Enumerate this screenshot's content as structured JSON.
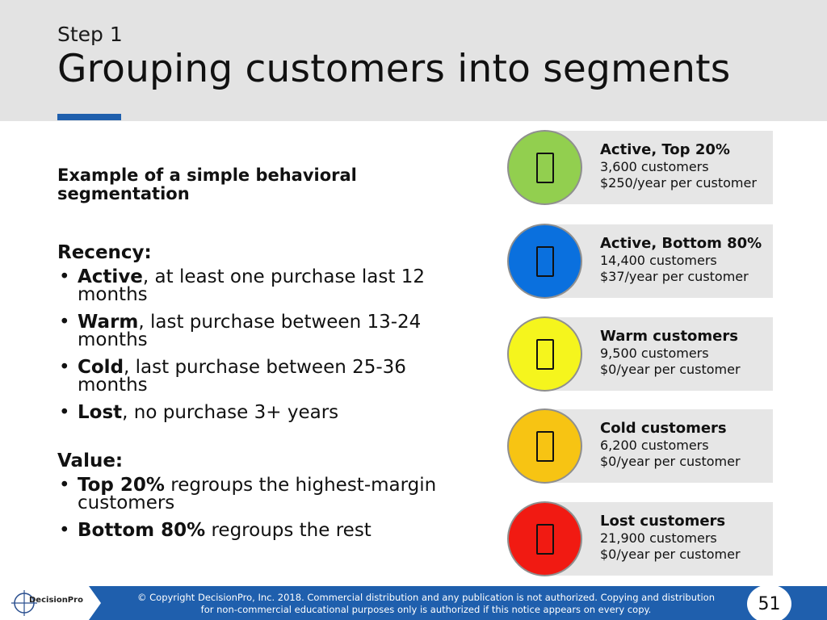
{
  "header": {
    "step": "Step 1",
    "title": "Grouping customers into segments"
  },
  "left": {
    "subhead": "Example of a simple behavioral segmentation",
    "recency": {
      "title": "Recency:",
      "items": [
        {
          "bold": "Active",
          "rest": ", at least one purchase last 12 months"
        },
        {
          "bold": "Warm",
          "rest": ", last purchase between 13-24 months"
        },
        {
          "bold": "Cold",
          "rest": ", last purchase between 25-36 months"
        },
        {
          "bold": "Lost",
          "rest": ", no purchase 3+ years"
        }
      ]
    },
    "value": {
      "title": "Value:",
      "items": [
        {
          "bold": "Top 20%",
          "rest": " regroups the highest-margin customers"
        },
        {
          "bold": "Bottom 80%",
          "rest": " regroups the rest"
        }
      ]
    }
  },
  "segments": [
    {
      "name": "Active, Top 20%",
      "count": "3,600 customers",
      "value": "$250/year per customer",
      "color": "#92cf4f",
      "icon": "placeholder-glyph-icon"
    },
    {
      "name": "Active, Bottom 80%",
      "count": "14,400 customers",
      "value": "$37/year per customer",
      "color": "#0a70de",
      "icon": "placeholder-glyph-icon"
    },
    {
      "name": "Warm customers",
      "count": "9,500 customers",
      "value": "$0/year per customer",
      "color": "#f5f51d",
      "icon": "placeholder-glyph-icon"
    },
    {
      "name": "Cold customers",
      "count": "6,200 customers",
      "value": "$0/year per customer",
      "color": "#f7c413",
      "icon": "placeholder-glyph-icon"
    },
    {
      "name": "Lost customers",
      "count": "21,900 customers",
      "value": "$0/year per customer",
      "color": "#f11a12",
      "icon": "placeholder-glyph-icon"
    }
  ],
  "footer": {
    "logo_text": "DecisionPro",
    "copyright_line1": "© Copyright DecisionPro, Inc.  2018. Commercial distribution and any publication is not authorized. Copying and distribution",
    "copyright_line2": "for non-commercial educational purposes only is authorized if this notice appears on every copy.",
    "page_number": "51",
    "brand_color": "#1f5fad"
  }
}
